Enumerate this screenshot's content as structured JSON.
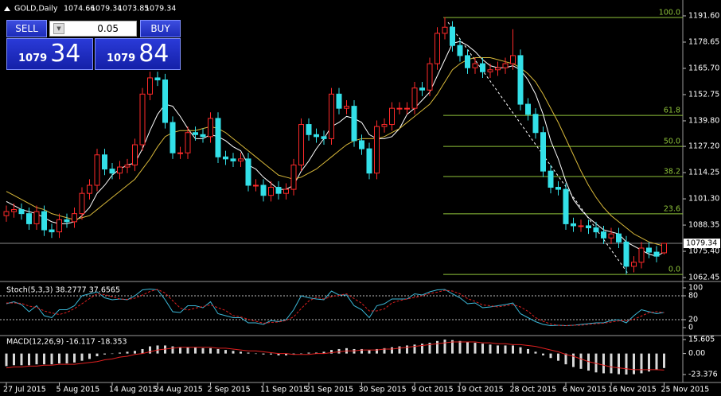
{
  "header": {
    "symbol": "GOLD,Daily",
    "open": "1074.66",
    "high": "1079.34",
    "low": "1073.85",
    "close": "1079.34"
  },
  "trade_panel": {
    "sell": "SELL",
    "buy": "BUY",
    "volume": "0.05",
    "bid": {
      "big_figure": "1079",
      "points": "34"
    },
    "ask": {
      "big_figure": "1079",
      "points": "84"
    }
  },
  "chart_data": [
    {
      "type": "candlestick",
      "bull_color": "#ff2a2a",
      "bear_color": "#33e0e8",
      "categories": [
        "27 Jul 2015",
        null,
        null,
        null,
        null,
        null,
        null,
        "5 Aug 2015",
        null,
        null,
        null,
        null,
        null,
        null,
        "14 Aug 2015",
        null,
        null,
        null,
        null,
        null,
        "24 Aug 2015",
        null,
        null,
        null,
        null,
        null,
        null,
        "2 Sep 2015",
        null,
        null,
        null,
        null,
        null,
        null,
        "11 Sep 2015",
        null,
        null,
        null,
        null,
        null,
        "21 Sep 2015",
        null,
        null,
        null,
        null,
        null,
        null,
        "30 Sep 2015",
        null,
        null,
        null,
        null,
        null,
        null,
        "9 Oct 2015",
        null,
        null,
        null,
        null,
        null,
        "19 Oct 2015",
        null,
        null,
        null,
        null,
        null,
        null,
        "28 Oct 2015",
        null,
        null,
        null,
        null,
        null,
        null,
        "6 Nov 2015",
        null,
        null,
        null,
        null,
        null,
        "16 Nov 2015",
        null,
        null,
        null,
        null,
        null,
        null,
        "25 Nov 2015"
      ],
      "open": [
        1093,
        1095,
        1096,
        1094,
        1089,
        1095,
        1086,
        1085,
        1091,
        1090,
        1094,
        1104,
        1108,
        1123,
        1116,
        1114,
        1117,
        1118,
        1128,
        1153,
        1161,
        1160,
        1139,
        1124,
        1124,
        1134,
        1133,
        1132,
        1141,
        1122,
        1121,
        1120,
        1121,
        1108,
        1108,
        1103,
        1107,
        1104,
        1106,
        1118,
        1138,
        1133,
        1132,
        1131,
        1153,
        1146,
        1147,
        1130,
        1126,
        1114,
        1137,
        1138,
        1146,
        1146,
        1146,
        1156,
        1155,
        1168,
        1183,
        1186,
        1177,
        1172,
        1166,
        1168,
        1164,
        1165,
        1166,
        1168,
        1172,
        1148,
        1143,
        1134,
        1115,
        1107,
        1106,
        1089,
        1088,
        1088,
        1087,
        1085,
        1082,
        1084,
        1080,
        1068,
        1070,
        1077,
        1075,
        1074.66
      ],
      "high": [
        1098,
        1099,
        1099,
        1097,
        1098,
        1098,
        1089,
        1094,
        1094,
        1097,
        1107,
        1111,
        1126,
        1126,
        1119,
        1120,
        1121,
        1131,
        1156,
        1164,
        1164,
        1163,
        1142,
        1127,
        1137,
        1137,
        1136,
        1144,
        1144,
        1125,
        1124,
        1124,
        1124,
        1111,
        1111,
        1110,
        1110,
        1109,
        1121,
        1141,
        1141,
        1136,
        1135,
        1156,
        1156,
        1150,
        1150,
        1133,
        1129,
        1140,
        1141,
        1149,
        1149,
        1149,
        1159,
        1159,
        1171,
        1186,
        1191,
        1189,
        1180,
        1175,
        1171,
        1171,
        1168,
        1169,
        1171,
        1185,
        1175,
        1151,
        1146,
        1137,
        1118,
        1110,
        1109,
        1092,
        1091,
        1091,
        1090,
        1088,
        1087,
        1087,
        1083,
        1073,
        1080,
        1080,
        1078,
        1079.34
      ],
      "low": [
        1090,
        1092,
        1091,
        1086,
        1086,
        1083,
        1082,
        1082,
        1087,
        1087,
        1091,
        1101,
        1105,
        1113,
        1111,
        1111,
        1114,
        1115,
        1125,
        1150,
        1157,
        1136,
        1121,
        1121,
        1121,
        1130,
        1129,
        1129,
        1119,
        1118,
        1117,
        1117,
        1105,
        1105,
        1100,
        1100,
        1101,
        1101,
        1103,
        1115,
        1130,
        1129,
        1128,
        1128,
        1143,
        1143,
        1127,
        1123,
        1111,
        1111,
        1134,
        1135,
        1143,
        1143,
        1143,
        1152,
        1152,
        1165,
        1180,
        1174,
        1169,
        1163,
        1163,
        1161,
        1161,
        1162,
        1163,
        1165,
        1145,
        1140,
        1131,
        1112,
        1104,
        1103,
        1086,
        1085,
        1085,
        1084,
        1082,
        1079,
        1079,
        1077,
        1064,
        1065,
        1067,
        1072,
        1070,
        1073.85
      ],
      "close": [
        1095,
        1096,
        1094,
        1089,
        1095,
        1086,
        1085,
        1091,
        1090,
        1094,
        1104,
        1108,
        1123,
        1116,
        1114,
        1117,
        1118,
        1128,
        1153,
        1161,
        1160,
        1139,
        1124,
        1124,
        1134,
        1133,
        1132,
        1141,
        1122,
        1121,
        1120,
        1121,
        1108,
        1108,
        1103,
        1107,
        1104,
        1106,
        1118,
        1138,
        1133,
        1132,
        1131,
        1153,
        1146,
        1147,
        1130,
        1126,
        1114,
        1137,
        1138,
        1146,
        1146,
        1146,
        1156,
        1155,
        1168,
        1183,
        1186,
        1177,
        1172,
        1166,
        1168,
        1164,
        1165,
        1166,
        1168,
        1172,
        1148,
        1143,
        1134,
        1115,
        1107,
        1106,
        1089,
        1088,
        1088,
        1087,
        1085,
        1082,
        1084,
        1080,
        1068,
        1070,
        1077,
        1075,
        1073,
        1079.34
      ],
      "moving_averages": [
        {
          "color": "#ffffff",
          "values": [
            1100,
            1098,
            1096,
            1095,
            1094,
            1092,
            1090,
            1089,
            1089,
            1090,
            1093,
            1097,
            1104,
            1108,
            1113,
            1116,
            1118,
            1119,
            1126,
            1135,
            1143,
            1148,
            1147,
            1142,
            1136,
            1131,
            1131,
            1133,
            1132,
            1130,
            1127,
            1125,
            1118,
            1116,
            1112,
            1109,
            1106,
            1106,
            1108,
            1115,
            1120,
            1126,
            1131,
            1137,
            1139,
            1142,
            1141,
            1139,
            1133,
            1131,
            1131,
            1132,
            1136,
            1143,
            1146,
            1150,
            1154,
            1162,
            1170,
            1178,
            1179,
            1177,
            1174,
            1170,
            1167,
            1166,
            1166,
            1167,
            1165,
            1160,
            1153,
            1143,
            1130,
            1121,
            1110,
            1101,
            1096,
            1092,
            1089,
            1086,
            1085,
            1084,
            1080,
            1078,
            1076,
            1074,
            1073,
            1075
          ]
        },
        {
          "color": "#d9b93a",
          "values": [
            1105,
            1103,
            1101,
            1099,
            1097,
            1096,
            1094,
            1093,
            1092,
            1091,
            1092,
            1093,
            1096,
            1099,
            1102,
            1105,
            1108,
            1111,
            1116,
            1121,
            1127,
            1132,
            1134,
            1135,
            1135,
            1135,
            1136,
            1137,
            1136,
            1134,
            1131,
            1128,
            1125,
            1122,
            1119,
            1116,
            1113,
            1112,
            1111,
            1112,
            1114,
            1116,
            1119,
            1122,
            1125,
            1128,
            1130,
            1131,
            1131,
            1131,
            1132,
            1134,
            1136,
            1139,
            1142,
            1145,
            1148,
            1153,
            1159,
            1165,
            1168,
            1170,
            1171,
            1171,
            1171,
            1170,
            1169,
            1168,
            1166,
            1163,
            1159,
            1153,
            1146,
            1139,
            1131,
            1123,
            1115,
            1108,
            1102,
            1097,
            1093,
            1090,
            1087,
            1084,
            1082,
            1080,
            1079,
            1078
          ]
        }
      ],
      "fib_color": "#8fc43a",
      "fib_levels": [
        {
          "label": "100.0",
          "price": 1190.8
        },
        {
          "label": "61.8",
          "price": 1142.5
        },
        {
          "label": "50.0",
          "price": 1127.2
        },
        {
          "label": "38.2",
          "price": 1112.3
        },
        {
          "label": "23.6",
          "price": 1093.9
        },
        {
          "label": "0.0",
          "price": 1064.0
        }
      ],
      "current_price": 1079.34,
      "ylim": [
        1060.9,
        1196.3
      ],
      "yticks": [
        {
          "value": 1191.6,
          "label": "1191.60"
        },
        1178.65,
        {
          "value": 1165.7,
          "label": "1165.70"
        },
        1152.75,
        {
          "value": 1139.8,
          "label": "1139.80"
        },
        {
          "value": 1127.2,
          "label": "1127.20"
        },
        1114.25,
        {
          "value": 1101.3,
          "label": "1101.30"
        },
        1088.35,
        {
          "value": 1075.4,
          "label": "1075.40"
        },
        1062.45
      ]
    },
    {
      "type": "line",
      "title": "Stoch(5,3,3) 38.2777 37.6565",
      "series": [
        {
          "color": "#3cb8d8",
          "values": [
            60,
            65,
            58,
            40,
            55,
            30,
            25,
            45,
            45,
            55,
            80,
            85,
            90,
            75,
            70,
            72,
            70,
            80,
            95,
            97,
            95,
            70,
            40,
            38,
            55,
            55,
            50,
            65,
            35,
            30,
            25,
            25,
            12,
            12,
            8,
            18,
            15,
            20,
            45,
            80,
            75,
            72,
            70,
            92,
            82,
            82,
            55,
            45,
            25,
            55,
            60,
            72,
            72,
            72,
            85,
            82,
            90,
            95,
            96,
            85,
            75,
            60,
            62,
            50,
            52,
            55,
            58,
            62,
            35,
            25,
            15,
            8,
            5,
            6,
            5,
            6,
            8,
            10,
            12,
            12,
            18,
            20,
            12,
            30,
            45,
            40,
            35,
            38.2777
          ]
        },
        {
          "color": "#e02020",
          "dashed": true,
          "values": [
            62,
            62,
            61,
            54,
            51,
            42,
            37,
            33,
            38,
            48,
            60,
            73,
            85,
            83,
            78,
            72,
            71,
            74,
            82,
            91,
            96,
            87,
            68,
            49,
            44,
            49,
            53,
            57,
            50,
            43,
            30,
            27,
            21,
            16,
            11,
            13,
            14,
            18,
            27,
            48,
            67,
            76,
            72,
            78,
            81,
            85,
            73,
            61,
            42,
            42,
            47,
            62,
            68,
            72,
            76,
            80,
            86,
            89,
            94,
            92,
            85,
            73,
            66,
            57,
            55,
            52,
            55,
            58,
            52,
            41,
            25,
            16,
            9,
            6,
            5,
            6,
            6,
            8,
            10,
            11,
            14,
            17,
            17,
            21,
            29,
            38,
            40,
            37.6565
          ]
        }
      ],
      "levels": [
        80,
        20
      ],
      "ylim": [
        -18,
        112
      ],
      "yticks": [
        100,
        80,
        20,
        0
      ]
    },
    {
      "type": "macd",
      "title": "MACD(12,26,9) -16.117 -18.353",
      "histogram": {
        "color": "#d8d8d8",
        "values": [
          -14,
          -13,
          -13,
          -13,
          -12,
          -12,
          -12,
          -11,
          -11,
          -10,
          -8,
          -6,
          -3,
          -1,
          0,
          1,
          2,
          3,
          5,
          8,
          9,
          9,
          8,
          7,
          7,
          7,
          6,
          6,
          5,
          4,
          3,
          2,
          1,
          0,
          -1,
          -1,
          -2,
          -2,
          -1,
          0,
          1,
          1,
          2,
          4,
          5,
          6,
          5,
          5,
          4,
          5,
          6,
          7,
          8,
          9,
          10,
          11,
          12,
          14,
          15.605,
          15,
          14,
          13,
          12,
          11,
          10,
          9,
          9,
          9,
          7,
          5,
          2,
          -2,
          -5,
          -8,
          -12,
          -15,
          -17,
          -19,
          -21,
          -22,
          -22,
          -23,
          -23.376,
          -23,
          -22,
          -20,
          -18,
          -16.117
        ]
      },
      "signal": {
        "color": "#e02020",
        "values": [
          -16,
          -15,
          -15,
          -14,
          -14,
          -13,
          -13,
          -12,
          -12,
          -12,
          -11,
          -10,
          -9,
          -7,
          -6,
          -4,
          -3,
          -1,
          0,
          2,
          4,
          5,
          6,
          7,
          7,
          7,
          7,
          7,
          6,
          6,
          5,
          4,
          3,
          3,
          2,
          1,
          0,
          0,
          -1,
          -1,
          -1,
          0,
          0,
          1,
          2,
          3,
          3,
          4,
          4,
          4,
          5,
          5,
          6,
          7,
          8,
          9,
          10,
          11,
          12,
          13,
          13,
          13,
          13,
          12,
          12,
          11,
          11,
          10,
          10,
          9,
          8,
          6,
          4,
          2,
          -1,
          -3,
          -6,
          -9,
          -11,
          -13,
          -15,
          -16,
          -17,
          -18,
          -18,
          -18,
          -18,
          -18.353
        ]
      },
      "ylim": [
        -31.35,
        19.15
      ],
      "yticks": [
        15.605,
        {
          "value": 0,
          "label": "0.00"
        },
        -23.376
      ]
    }
  ]
}
